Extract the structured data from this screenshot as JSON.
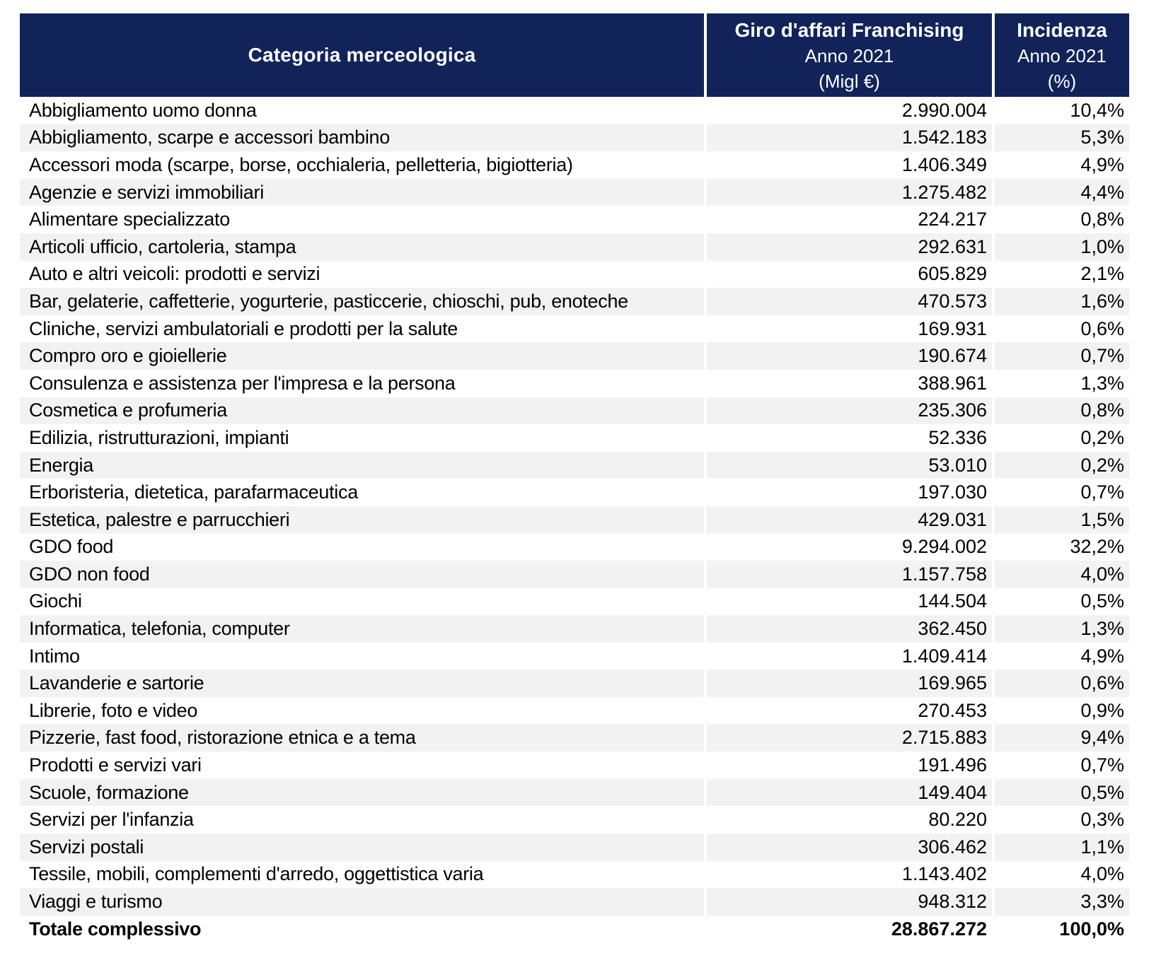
{
  "colors": {
    "header_bg": "#12235A",
    "header_text": "#FFFFFF",
    "row_alt_bg": "#F2F2F2",
    "body_text": "#000000"
  },
  "table": {
    "header": {
      "category": "Categoria merceologica",
      "giro": {
        "line1": "Giro d'affari Franchising",
        "line2": "Anno 2021",
        "line3": "(Migl €)"
      },
      "incidenza": {
        "line1": "Incidenza",
        "line2": "Anno 2021",
        "line3": "(%)"
      }
    },
    "rows": [
      {
        "category": "Abbigliamento uomo donna",
        "value": "2.990.004",
        "pct": "10,4%"
      },
      {
        "category": "Abbigliamento, scarpe e accessori bambino",
        "value": "1.542.183",
        "pct": "5,3%"
      },
      {
        "category": "Accessori moda (scarpe, borse, occhialeria, pelletteria, bigiotteria)",
        "value": "1.406.349",
        "pct": "4,9%"
      },
      {
        "category": "Agenzie e servizi immobiliari",
        "value": "1.275.482",
        "pct": "4,4%"
      },
      {
        "category": "Alimentare specializzato",
        "value": "224.217",
        "pct": "0,8%"
      },
      {
        "category": "Articoli ufficio, cartoleria, stampa",
        "value": "292.631",
        "pct": "1,0%"
      },
      {
        "category": "Auto e altri veicoli: prodotti e servizi",
        "value": "605.829",
        "pct": "2,1%"
      },
      {
        "category": "Bar, gelaterie, caffetterie, yogurterie, pasticcerie, chioschi, pub, enoteche",
        "value": "470.573",
        "pct": "1,6%"
      },
      {
        "category": "Cliniche, servizi ambulatoriali e prodotti per la salute",
        "value": "169.931",
        "pct": "0,6%"
      },
      {
        "category": "Compro oro e gioiellerie",
        "value": "190.674",
        "pct": "0,7%"
      },
      {
        "category": "Consulenza e assistenza per l'impresa e la persona",
        "value": "388.961",
        "pct": "1,3%"
      },
      {
        "category": "Cosmetica e profumeria",
        "value": "235.306",
        "pct": "0,8%"
      },
      {
        "category": "Edilizia, ristrutturazioni, impianti",
        "value": "52.336",
        "pct": "0,2%"
      },
      {
        "category": "Energia",
        "value": "53.010",
        "pct": "0,2%"
      },
      {
        "category": "Erboristeria, dietetica, parafarmaceutica",
        "value": "197.030",
        "pct": "0,7%"
      },
      {
        "category": "Estetica, palestre e parrucchieri",
        "value": "429.031",
        "pct": "1,5%"
      },
      {
        "category": "GDO food",
        "value": "9.294.002",
        "pct": "32,2%"
      },
      {
        "category": "GDO non food",
        "value": "1.157.758",
        "pct": "4,0%"
      },
      {
        "category": "Giochi",
        "value": "144.504",
        "pct": "0,5%"
      },
      {
        "category": "Informatica, telefonia, computer",
        "value": "362.450",
        "pct": "1,3%"
      },
      {
        "category": "Intimo",
        "value": "1.409.414",
        "pct": "4,9%"
      },
      {
        "category": "Lavanderie e sartorie",
        "value": "169.965",
        "pct": "0,6%"
      },
      {
        "category": "Librerie, foto e video",
        "value": "270.453",
        "pct": "0,9%"
      },
      {
        "category": "Pizzerie, fast food, ristorazione etnica e a tema",
        "value": "2.715.883",
        "pct": "9,4%"
      },
      {
        "category": "Prodotti e servizi vari",
        "value": "191.496",
        "pct": "0,7%"
      },
      {
        "category": "Scuole, formazione",
        "value": "149.404",
        "pct": "0,5%"
      },
      {
        "category": "Servizi per l'infanzia",
        "value": "80.220",
        "pct": "0,3%"
      },
      {
        "category": "Servizi postali",
        "value": "306.462",
        "pct": "1,1%"
      },
      {
        "category": "Tessile, mobili, complementi d'arredo, oggettistica varia",
        "value": "1.143.402",
        "pct": "4,0%"
      },
      {
        "category": "Viaggi e turismo",
        "value": "948.312",
        "pct": "3,3%"
      }
    ],
    "total": {
      "category": "Totale complessivo",
      "value": "28.867.272",
      "pct": "100,0%"
    }
  },
  "chart_data": {
    "type": "table",
    "columns": [
      "Categoria merceologica",
      "Giro d'affari Franchising Anno 2021 (Migl €)",
      "Incidenza Anno 2021 (%)"
    ],
    "rows": [
      [
        "Abbigliamento uomo donna",
        2990004,
        10.4
      ],
      [
        "Abbigliamento, scarpe e accessori bambino",
        1542183,
        5.3
      ],
      [
        "Accessori moda (scarpe, borse, occhialeria, pelletteria, bigiotteria)",
        1406349,
        4.9
      ],
      [
        "Agenzie e servizi immobiliari",
        1275482,
        4.4
      ],
      [
        "Alimentare specializzato",
        224217,
        0.8
      ],
      [
        "Articoli ufficio, cartoleria, stampa",
        292631,
        1.0
      ],
      [
        "Auto e altri veicoli: prodotti e servizi",
        605829,
        2.1
      ],
      [
        "Bar, gelaterie, caffetterie, yogurterie, pasticcerie, chioschi, pub, enoteche",
        470573,
        1.6
      ],
      [
        "Cliniche, servizi ambulatoriali e prodotti per la salute",
        169931,
        0.6
      ],
      [
        "Compro oro e gioiellerie",
        190674,
        0.7
      ],
      [
        "Consulenza e assistenza per l'impresa e la persona",
        388961,
        1.3
      ],
      [
        "Cosmetica e profumeria",
        235306,
        0.8
      ],
      [
        "Edilizia, ristrutturazioni, impianti",
        52336,
        0.2
      ],
      [
        "Energia",
        53010,
        0.2
      ],
      [
        "Erboristeria, dietetica, parafarmaceutica",
        197030,
        0.7
      ],
      [
        "Estetica, palestre e parrucchieri",
        429031,
        1.5
      ],
      [
        "GDO food",
        9294002,
        32.2
      ],
      [
        "GDO non food",
        1157758,
        4.0
      ],
      [
        "Giochi",
        144504,
        0.5
      ],
      [
        "Informatica, telefonia, computer",
        362450,
        1.3
      ],
      [
        "Intimo",
        1409414,
        4.9
      ],
      [
        "Lavanderie e sartorie",
        169965,
        0.6
      ],
      [
        "Librerie, foto e video",
        270453,
        0.9
      ],
      [
        "Pizzerie, fast food, ristorazione etnica e a tema",
        2715883,
        9.4
      ],
      [
        "Prodotti e servizi vari",
        191496,
        0.7
      ],
      [
        "Scuole, formazione",
        149404,
        0.5
      ],
      [
        "Servizi per l'infanzia",
        80220,
        0.3
      ],
      [
        "Servizi postali",
        306462,
        1.1
      ],
      [
        "Tessile, mobili, complementi d'arredo, oggettistica varia",
        1143402,
        4.0
      ],
      [
        "Viaggi e turismo",
        948312,
        3.3
      ]
    ],
    "total_row": [
      "Totale complessivo",
      28867272,
      100.0
    ]
  }
}
